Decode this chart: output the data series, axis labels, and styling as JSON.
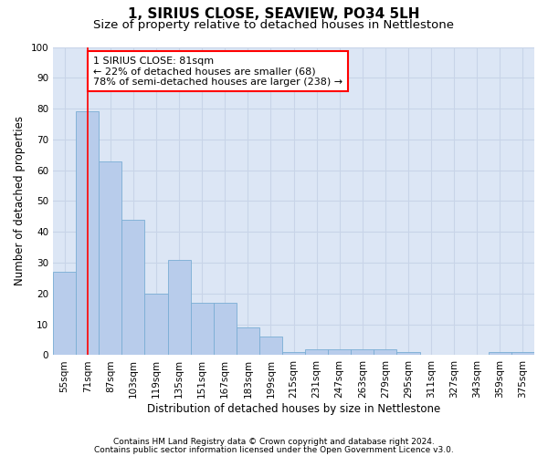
{
  "title": "1, SIRIUS CLOSE, SEAVIEW, PO34 5LH",
  "subtitle": "Size of property relative to detached houses in Nettlestone",
  "xlabel": "Distribution of detached houses by size in Nettlestone",
  "ylabel": "Number of detached properties",
  "categories": [
    "55sqm",
    "71sqm",
    "87sqm",
    "103sqm",
    "119sqm",
    "135sqm",
    "151sqm",
    "167sqm",
    "183sqm",
    "199sqm",
    "215sqm",
    "231sqm",
    "247sqm",
    "263sqm",
    "279sqm",
    "295sqm",
    "311sqm",
    "327sqm",
    "343sqm",
    "359sqm",
    "375sqm"
  ],
  "values": [
    27,
    79,
    63,
    44,
    20,
    31,
    17,
    17,
    9,
    6,
    1,
    2,
    2,
    2,
    2,
    1,
    0,
    0,
    0,
    1,
    1
  ],
  "bar_color": "#b8cceb",
  "bar_edge_color": "#7aadd4",
  "grid_color": "#c8d4e8",
  "bg_color": "#dce6f5",
  "annotation_line_color": "red",
  "annotation_box_color": "white",
  "annotation_box_edge_color": "red",
  "annotation_text_line1": "1 SIRIUS CLOSE: 81sqm",
  "annotation_text_line2": "← 22% of detached houses are smaller (68)",
  "annotation_text_line3": "78% of semi-detached houses are larger (238) →",
  "ylim": [
    0,
    100
  ],
  "yticks": [
    0,
    10,
    20,
    30,
    40,
    50,
    60,
    70,
    80,
    90,
    100
  ],
  "red_line_x": 1.5,
  "footer1": "Contains HM Land Registry data © Crown copyright and database right 2024.",
  "footer2": "Contains public sector information licensed under the Open Government Licence v3.0.",
  "title_fontsize": 11,
  "subtitle_fontsize": 9.5,
  "axis_label_fontsize": 8.5,
  "tick_fontsize": 7.5,
  "annotation_fontsize": 8,
  "footer_fontsize": 6.5
}
